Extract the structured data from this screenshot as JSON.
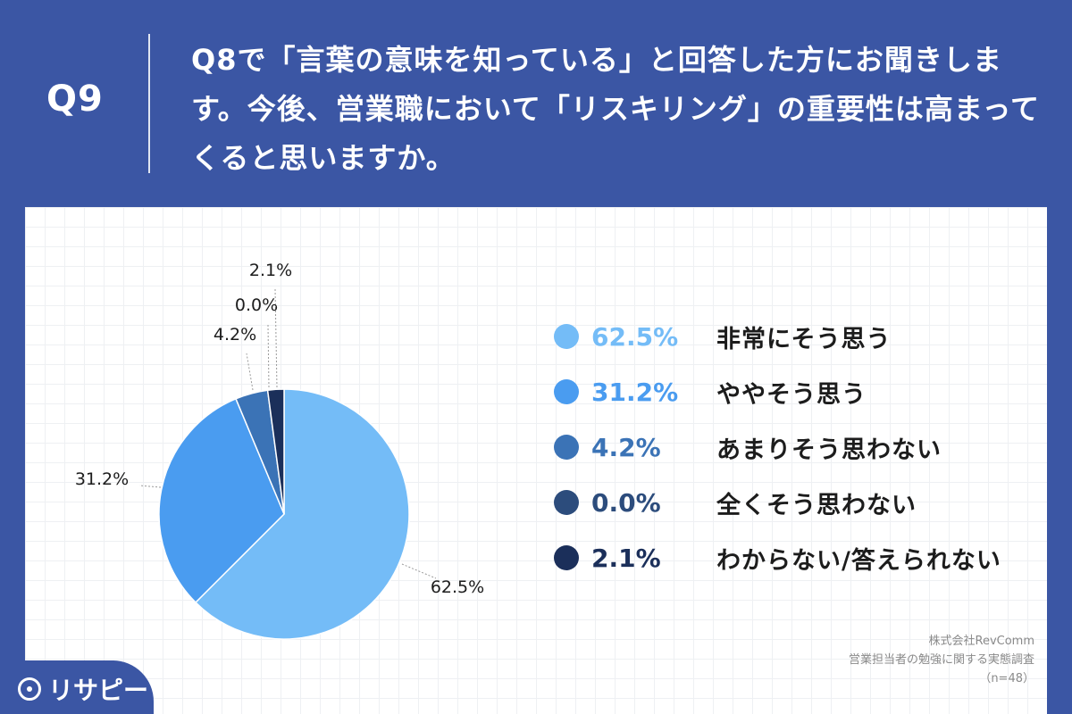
{
  "header": {
    "question_number": "Q9",
    "question_text": "Q8で「言葉の意味を知っている」と回答した方にお聞きします。今後、営業職において「リスキリング」の重要性は高まってくると思いますか。"
  },
  "chart_data": {
    "type": "pie",
    "categories": [
      "非常にそう思う",
      "ややそう思う",
      "あまりそう思わない",
      "全くそう思わない",
      "わからない/答えられない"
    ],
    "values": [
      62.5,
      31.2,
      4.2,
      0.0,
      2.1
    ],
    "value_labels": [
      "62.5%",
      "31.2%",
      "4.2%",
      "0.0%",
      "2.1%"
    ],
    "colors": [
      "#74bcf7",
      "#4a9cf0",
      "#3b73b6",
      "#2c4c7c",
      "#1b2f5a"
    ],
    "legend_placement": "right"
  },
  "source": {
    "company": "株式会社RevComm",
    "survey": "営業担当者の勉強に関する実態調査",
    "sample": "（n=48）"
  },
  "logo": {
    "text": "リサピー"
  }
}
